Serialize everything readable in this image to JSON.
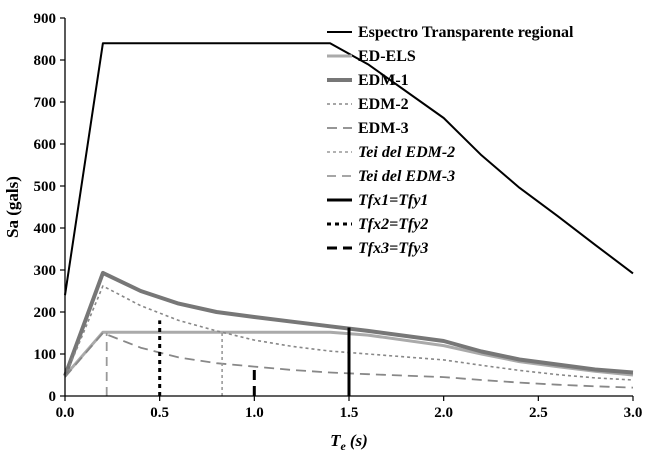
{
  "chart_data": {
    "type": "line",
    "xlabel": "T",
    "xlabel_sub": "e",
    "xlabel_unit": "(s)",
    "ylabel": "Sa (gals)",
    "xlim": [
      0,
      3
    ],
    "ylim": [
      0,
      900
    ],
    "x_ticks": [
      "0.0",
      "0.5",
      "1.0",
      "1.5",
      "2.0",
      "2.5",
      "3.0"
    ],
    "y_ticks": [
      "0",
      "100",
      "200",
      "300",
      "400",
      "500",
      "600",
      "700",
      "800",
      "900"
    ],
    "grid": false,
    "legend_position": "top-right",
    "series": [
      {
        "name": "Espectro Transparente regional",
        "color": "#000000",
        "width": 2,
        "dash": "none",
        "italic": false,
        "points": [
          [
            0,
            240
          ],
          [
            0.2,
            840
          ],
          [
            1.4,
            840
          ],
          [
            1.6,
            790
          ],
          [
            2.0,
            662
          ],
          [
            2.2,
            573
          ],
          [
            2.4,
            496
          ],
          [
            2.6,
            429
          ],
          [
            2.8,
            360
          ],
          [
            3.0,
            292
          ]
        ]
      },
      {
        "name": "ED-ELS",
        "color": "#aaaaaa",
        "width": 3,
        "dash": "none",
        "italic": false,
        "points": [
          [
            0,
            48
          ],
          [
            0.2,
            152
          ],
          [
            1.4,
            152
          ],
          [
            1.6,
            145
          ],
          [
            2.0,
            120
          ],
          [
            2.2,
            100
          ],
          [
            2.4,
            82
          ],
          [
            2.6,
            70
          ],
          [
            2.8,
            59
          ],
          [
            3.0,
            50
          ]
        ]
      },
      {
        "name": "EDM-1",
        "color": "#777777",
        "width": 4,
        "dash": "none",
        "italic": false,
        "points": [
          [
            0,
            48
          ],
          [
            0.2,
            293
          ],
          [
            0.4,
            250
          ],
          [
            0.6,
            220
          ],
          [
            0.8,
            200
          ],
          [
            1.0,
            188
          ],
          [
            1.2,
            177
          ],
          [
            1.4,
            166
          ],
          [
            1.6,
            155
          ],
          [
            2.0,
            131
          ],
          [
            2.2,
            106
          ],
          [
            2.4,
            87
          ],
          [
            2.6,
            75
          ],
          [
            2.8,
            63
          ],
          [
            3.0,
            56
          ]
        ]
      },
      {
        "name": "EDM-2",
        "color": "#888888",
        "width": 1.6,
        "dash": "3,3",
        "italic": false,
        "points": [
          [
            0,
            45
          ],
          [
            0.2,
            262
          ],
          [
            0.4,
            215
          ],
          [
            0.6,
            180
          ],
          [
            0.8,
            155
          ],
          [
            1.0,
            133
          ],
          [
            1.2,
            118
          ],
          [
            1.4,
            107
          ],
          [
            1.6,
            100
          ],
          [
            2.0,
            86
          ],
          [
            2.2,
            73
          ],
          [
            2.4,
            61
          ],
          [
            2.6,
            51
          ],
          [
            2.8,
            43
          ],
          [
            3.0,
            38
          ]
        ]
      },
      {
        "name": "EDM-3",
        "color": "#888888",
        "width": 1.8,
        "dash": "10,6",
        "italic": false,
        "points": [
          [
            0,
            45
          ],
          [
            0.2,
            150
          ],
          [
            0.4,
            115
          ],
          [
            0.6,
            92
          ],
          [
            0.8,
            78
          ],
          [
            1.0,
            70
          ],
          [
            1.2,
            62
          ],
          [
            1.4,
            56
          ],
          [
            1.6,
            52
          ],
          [
            2.0,
            45
          ],
          [
            2.2,
            38
          ],
          [
            2.4,
            32
          ],
          [
            2.6,
            27
          ],
          [
            2.8,
            23
          ],
          [
            3.0,
            20
          ]
        ]
      },
      {
        "name": "Tei del EDM-2",
        "color": "#999999",
        "width": 1.6,
        "dash": "3,3",
        "italic": true,
        "points": [
          [
            0.83,
            0
          ],
          [
            0.83,
            150
          ]
        ]
      },
      {
        "name": "Tei del EDM-3",
        "color": "#999999",
        "width": 1.8,
        "dash": "9,6",
        "italic": true,
        "points": [
          [
            0.22,
            0
          ],
          [
            0.22,
            150
          ]
        ]
      },
      {
        "name": "Tfx1=Tfy1",
        "color": "#000000",
        "width": 3,
        "dash": "none",
        "italic": true,
        "points": [
          [
            1.5,
            0
          ],
          [
            1.5,
            163
          ]
        ]
      },
      {
        "name": "Tfx2=Tfy2",
        "color": "#000000",
        "width": 3,
        "dash": "4,4",
        "italic": true,
        "points": [
          [
            0.5,
            0
          ],
          [
            0.5,
            180
          ]
        ]
      },
      {
        "name": "Tfx3=Tfy3",
        "color": "#000000",
        "width": 3,
        "dash": "10,6",
        "italic": true,
        "points": [
          [
            1.0,
            0
          ],
          [
            1.0,
            72
          ]
        ]
      }
    ]
  }
}
